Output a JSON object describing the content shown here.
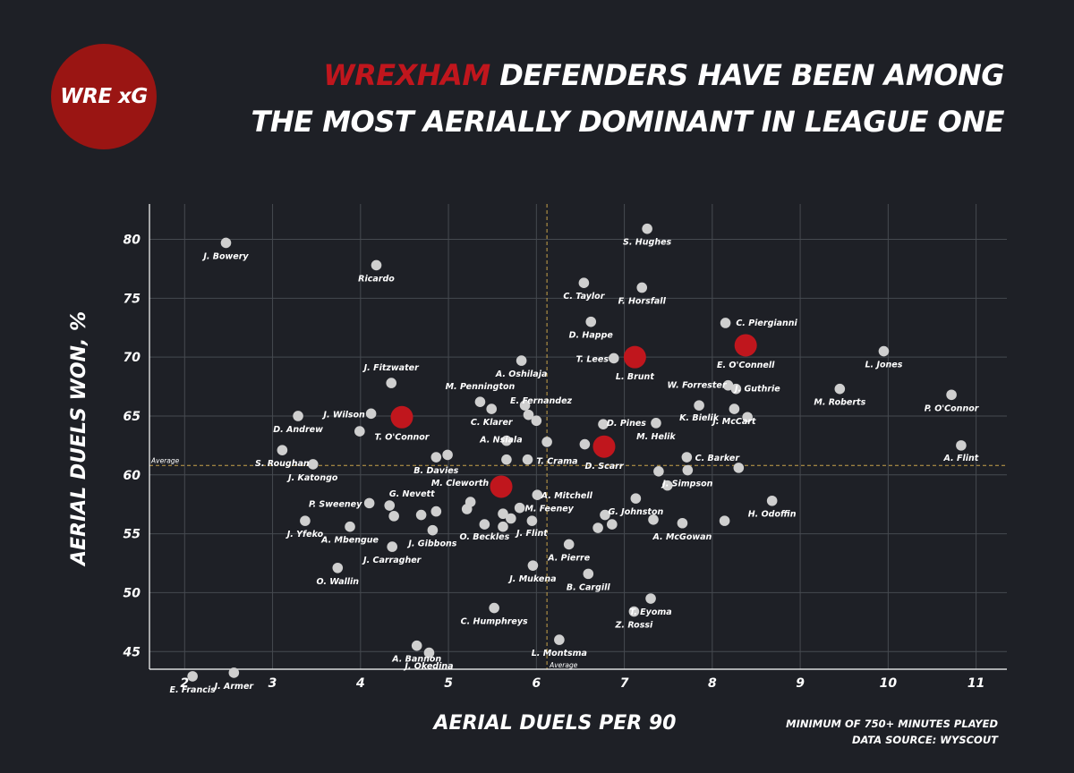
{
  "logo": {
    "text": "WRE xG"
  },
  "title": {
    "highlight": "WREXHAM",
    "line1_rest": "DEFENDERS HAVE BEEN AMONG",
    "line2": "THE MOST AERIALLY DOMINANT IN LEAGUE ONE"
  },
  "footnote": {
    "line1": "MINIMUM OF 750+ MINUTES PLAYED",
    "line2": "DATA SOURCE: WYSCOUT"
  },
  "colors": {
    "background": "#1e2026",
    "highlight": "#c0161d",
    "point": "#cfcfcf",
    "grid": "#464a50",
    "average_line": "#c8a24a"
  },
  "chart_data": {
    "type": "scatter",
    "xlabel": "AERIAL DUELS PER 90",
    "ylabel": "AERIAL DUELS WON, %",
    "xlim": [
      1.6,
      11.35
    ],
    "ylim": [
      43.5,
      83
    ],
    "xticks": [
      2,
      3,
      4,
      5,
      6,
      7,
      8,
      9,
      10,
      11
    ],
    "yticks": [
      45,
      50,
      55,
      60,
      65,
      70,
      75,
      80
    ],
    "grid": true,
    "average": {
      "x": 6.12,
      "y": 60.8,
      "label": "Average"
    },
    "points": [
      {
        "x": 2.47,
        "y": 79.7,
        "label": "J. Bowery"
      },
      {
        "x": 4.18,
        "y": 77.8,
        "label": "Ricardo"
      },
      {
        "x": 7.26,
        "y": 80.9,
        "label": "S. Hughes"
      },
      {
        "x": 6.54,
        "y": 76.3,
        "label": "C. Taylor"
      },
      {
        "x": 7.2,
        "y": 75.9,
        "label": "F. Horsfall"
      },
      {
        "x": 6.62,
        "y": 73.0,
        "label": "D. Happe"
      },
      {
        "x": 8.15,
        "y": 72.9,
        "label": "C. Piergianni"
      },
      {
        "x": 8.38,
        "y": 71.0,
        "label": "E. O'Connell",
        "highlight": true
      },
      {
        "x": 7.12,
        "y": 70.0,
        "label": "L. Brunt",
        "highlight": true
      },
      {
        "x": 6.88,
        "y": 69.9,
        "label": "T. Lees"
      },
      {
        "x": 9.95,
        "y": 70.5,
        "label": "L. Jones"
      },
      {
        "x": 5.83,
        "y": 69.7,
        "label": "A. Oshilaja"
      },
      {
        "x": 8.18,
        "y": 67.6,
        "label": "W. Forrester"
      },
      {
        "x": 8.27,
        "y": 67.3,
        "label": "J. Guthrie"
      },
      {
        "x": 9.45,
        "y": 67.3,
        "label": "M. Roberts"
      },
      {
        "x": 10.72,
        "y": 66.8,
        "label": "P. O'Connor"
      },
      {
        "x": 4.35,
        "y": 67.8,
        "label": "J. Fitzwater"
      },
      {
        "x": 5.36,
        "y": 66.2,
        "label": "M. Pennington"
      },
      {
        "x": 5.87,
        "y": 65.9,
        "label": "E. Fernandez"
      },
      {
        "x": 5.49,
        "y": 65.6,
        "label": "C. Klarer"
      },
      {
        "x": 4.12,
        "y": 65.2,
        "label": "J. Wilson"
      },
      {
        "x": 4.47,
        "y": 64.9,
        "label": "T. O'Connor",
        "highlight": true
      },
      {
        "x": 3.29,
        "y": 65.0,
        "label": "D. Andrew"
      },
      {
        "x": 7.85,
        "y": 65.9,
        "label": "K. Bielik"
      },
      {
        "x": 8.25,
        "y": 65.6,
        "label": "J. McCart"
      },
      {
        "x": 8.4,
        "y": 64.9,
        "label": "J. McCart (2)"
      },
      {
        "x": 6.76,
        "y": 64.3,
        "label": "D. Pines"
      },
      {
        "x": 7.36,
        "y": 64.4,
        "label": "M. Helik"
      },
      {
        "x": 5.91,
        "y": 65.1,
        "label": ""
      },
      {
        "x": 6.0,
        "y": 64.6,
        "label": ""
      },
      {
        "x": 3.99,
        "y": 63.7,
        "label": ""
      },
      {
        "x": 5.66,
        "y": 62.9,
        "label": "A. Nsiala"
      },
      {
        "x": 6.12,
        "y": 62.8,
        "label": ""
      },
      {
        "x": 6.55,
        "y": 62.6,
        "label": ""
      },
      {
        "x": 6.77,
        "y": 62.4,
        "label": "D. Scarr",
        "highlight": true
      },
      {
        "x": 3.11,
        "y": 62.1,
        "label": "S. Roughan"
      },
      {
        "x": 3.46,
        "y": 60.9,
        "label": "J. Katongo"
      },
      {
        "x": 4.86,
        "y": 61.5,
        "label": "B. Davies"
      },
      {
        "x": 4.99,
        "y": 61.7,
        "label": ""
      },
      {
        "x": 5.66,
        "y": 61.3,
        "label": ""
      },
      {
        "x": 5.9,
        "y": 61.3,
        "label": "T. Crama"
      },
      {
        "x": 7.71,
        "y": 61.5,
        "label": "C. Barker"
      },
      {
        "x": 7.39,
        "y": 60.3,
        "label": ""
      },
      {
        "x": 7.72,
        "y": 60.4,
        "label": "J. Simpson"
      },
      {
        "x": 8.3,
        "y": 60.6,
        "label": ""
      },
      {
        "x": 10.83,
        "y": 62.5,
        "label": "A. Flint"
      },
      {
        "x": 5.6,
        "y": 59.0,
        "label": "M. Cleworth",
        "highlight": true
      },
      {
        "x": 7.49,
        "y": 59.1,
        "label": ""
      },
      {
        "x": 6.01,
        "y": 58.3,
        "label": "A. Mitchell"
      },
      {
        "x": 7.13,
        "y": 58.0,
        "label": "G. Johnston"
      },
      {
        "x": 8.68,
        "y": 57.8,
        "label": "H. Odoffin"
      },
      {
        "x": 4.1,
        "y": 57.6,
        "label": "P. Sweeney"
      },
      {
        "x": 4.33,
        "y": 57.4,
        "label": "G. Nevett"
      },
      {
        "x": 5.25,
        "y": 57.7,
        "label": ""
      },
      {
        "x": 5.21,
        "y": 57.1,
        "label": ""
      },
      {
        "x": 5.81,
        "y": 57.2,
        "label": "M. Feeney"
      },
      {
        "x": 4.38,
        "y": 56.5,
        "label": ""
      },
      {
        "x": 4.69,
        "y": 56.6,
        "label": ""
      },
      {
        "x": 4.86,
        "y": 56.9,
        "label": ""
      },
      {
        "x": 5.62,
        "y": 56.7,
        "label": ""
      },
      {
        "x": 5.71,
        "y": 56.3,
        "label": ""
      },
      {
        "x": 5.95,
        "y": 56.1,
        "label": "J. Flint"
      },
      {
        "x": 6.78,
        "y": 56.6,
        "label": ""
      },
      {
        "x": 7.33,
        "y": 56.2,
        "label": ""
      },
      {
        "x": 8.14,
        "y": 56.1,
        "label": ""
      },
      {
        "x": 7.66,
        "y": 55.9,
        "label": "A. McGowan"
      },
      {
        "x": 3.37,
        "y": 56.1,
        "label": "J. Yfeko"
      },
      {
        "x": 3.88,
        "y": 55.6,
        "label": "A. Mbengue"
      },
      {
        "x": 4.82,
        "y": 55.3,
        "label": "J. Gibbons"
      },
      {
        "x": 5.41,
        "y": 55.8,
        "label": "O. Beckles"
      },
      {
        "x": 5.62,
        "y": 55.6,
        "label": ""
      },
      {
        "x": 6.7,
        "y": 55.5,
        "label": ""
      },
      {
        "x": 6.86,
        "y": 55.8,
        "label": ""
      },
      {
        "x": 6.37,
        "y": 54.1,
        "label": "A. Pierre"
      },
      {
        "x": 4.36,
        "y": 53.9,
        "label": "J. Carragher"
      },
      {
        "x": 5.96,
        "y": 52.3,
        "label": "J. Mukena"
      },
      {
        "x": 6.59,
        "y": 51.6,
        "label": "B. Cargill"
      },
      {
        "x": 3.74,
        "y": 52.1,
        "label": "O. Wallin"
      },
      {
        "x": 5.52,
        "y": 48.7,
        "label": "C. Humphreys"
      },
      {
        "x": 7.3,
        "y": 49.5,
        "label": "T. Eyoma"
      },
      {
        "x": 7.11,
        "y": 48.4,
        "label": "Z. Rossi"
      },
      {
        "x": 4.64,
        "y": 45.5,
        "label": "A. Bannon"
      },
      {
        "x": 4.78,
        "y": 44.9,
        "label": "J. Okedina"
      },
      {
        "x": 6.26,
        "y": 46.0,
        "label": "L. Montsma"
      },
      {
        "x": 2.09,
        "y": 42.9,
        "label": "E. Francis"
      },
      {
        "x": 2.56,
        "y": 43.2,
        "label": "J. Armer"
      }
    ]
  }
}
